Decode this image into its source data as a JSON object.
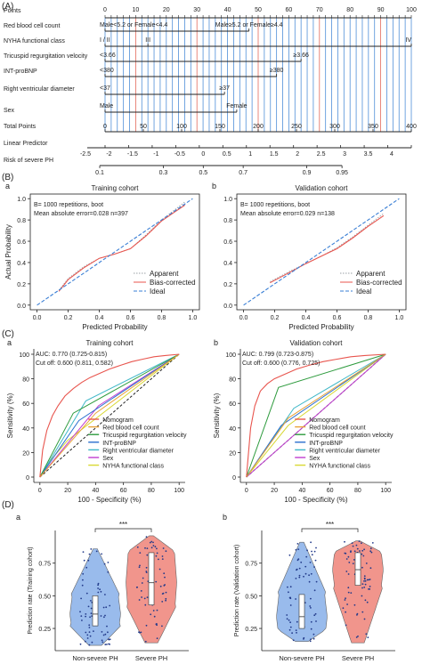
{
  "panel_labels": {
    "A": "(A)",
    "B": "(B)",
    "C": "(C)",
    "D": "(D)"
  },
  "sub_labels": {
    "a": "a",
    "b": "b"
  },
  "chart_data": [
    {
      "type": "nomogram",
      "panel": "(A)",
      "row_labels": [
        "Points",
        "Red blood cell count",
        "NYHA functional class",
        "Tricuspid regurgitation velocity",
        "INT-proBNP",
        "Right ventricular diameter",
        "Sex",
        "Total Points",
        "Linear Predictor",
        "Risk of severe PH"
      ],
      "points_ticks": [
        "0",
        "10",
        "20",
        "30",
        "40",
        "50",
        "60",
        "70",
        "80",
        "90",
        "100"
      ],
      "variables": [
        {
          "name": "Red blood cell count",
          "from": 0,
          "to": 47,
          "labels": [
            {
              "text": "Male<5.2 or Female<4.4",
              "at": 0
            },
            {
              "text": "Male≥5.2 or Female≥4.4",
              "at": 47
            }
          ]
        },
        {
          "name": "NYHA functional class",
          "from": 0,
          "to": 100,
          "labels": [
            {
              "text": "I / II",
              "at": 0
            },
            {
              "text": "III",
              "at": 14
            },
            {
              "text": "IV",
              "at": 100
            }
          ]
        },
        {
          "name": "Tricuspid regurgitation velocity",
          "from": 0,
          "to": 64,
          "labels": [
            {
              "text": "<3.66",
              "at": 0
            },
            {
              "text": "≥3.66",
              "at": 64
            }
          ]
        },
        {
          "name": "INT-proBNP",
          "from": 0,
          "to": 56,
          "labels": [
            {
              "text": "<380",
              "at": 0
            },
            {
              "text": "≥380",
              "at": 56
            }
          ]
        },
        {
          "name": "Right ventricular diameter",
          "from": 0,
          "to": 39,
          "labels": [
            {
              "text": "<37",
              "at": 0
            },
            {
              "text": "≥37",
              "at": 39
            }
          ]
        },
        {
          "name": "Sex",
          "from": 0,
          "to": 43,
          "labels": [
            {
              "text": "Male",
              "at": 0
            },
            {
              "text": "Female",
              "at": 43
            }
          ]
        }
      ],
      "total_points_ticks": [
        "0",
        "50",
        "100",
        "150",
        "200",
        "250",
        "300",
        "350",
        "400"
      ],
      "linear_predictor_ticks": [
        "-2.5",
        "-2",
        "-1.5",
        "-1",
        "-0.5",
        "0",
        "0.5",
        "1",
        "1.5",
        "2",
        "2.5",
        "3",
        "3.5",
        "4"
      ],
      "linear_predictor_values": [
        -2.5,
        -2,
        -1.5,
        -1,
        -0.5,
        0,
        0.5,
        1,
        1.5,
        2,
        2.5,
        3,
        3.5,
        4
      ],
      "risk_ticks": [
        "0.1",
        "0.3",
        "0.5",
        "0.7",
        "0.9",
        "0.95"
      ],
      "risk_values": [
        0.1,
        0.3,
        0.5,
        0.7,
        0.9,
        0.95
      ]
    },
    {
      "type": "line",
      "panel": "(B) a",
      "title": "Training cohort",
      "xlabel": "Predicted Probability",
      "ylabel": "Actual Probability",
      "xlim": [
        0,
        1
      ],
      "ylim": [
        0,
        1
      ],
      "xticks": [
        "0.0",
        "0.2",
        "0.4",
        "0.6",
        "0.8",
        "1.0"
      ],
      "yticks": [
        "0.0",
        "0.2",
        "0.4",
        "0.6",
        "0.8",
        "1.0"
      ],
      "annotations": [
        "B= 1000 repetitions, boot",
        "Mean absolute error=0.028 n=397"
      ],
      "legend": [
        "Apparent",
        "Bias-corrected",
        "Ideal"
      ],
      "legend_colors": [
        "#2ca02c",
        "#e8554e",
        "#3a7fd5"
      ],
      "series": [
        {
          "name": "Apparent",
          "x": [
            0.14,
            0.2,
            0.3,
            0.4,
            0.5,
            0.6,
            0.7,
            0.8,
            0.88,
            0.95
          ],
          "y": [
            0.14,
            0.25,
            0.36,
            0.44,
            0.48,
            0.53,
            0.66,
            0.8,
            0.89,
            0.97
          ]
        },
        {
          "name": "Bias-corrected",
          "x": [
            0.14,
            0.2,
            0.3,
            0.4,
            0.5,
            0.6,
            0.7,
            0.8,
            0.88,
            0.95
          ],
          "y": [
            0.13,
            0.24,
            0.35,
            0.44,
            0.48,
            0.53,
            0.65,
            0.79,
            0.87,
            0.94
          ]
        },
        {
          "name": "Ideal",
          "x": [
            0,
            1
          ],
          "y": [
            0,
            1
          ]
        }
      ]
    },
    {
      "type": "line",
      "panel": "(B) b",
      "title": "Validation cohort",
      "xlabel": "Predicted Probability",
      "ylabel": "",
      "xlim": [
        0,
        1
      ],
      "ylim": [
        0,
        1
      ],
      "xticks": [
        "0.0",
        "0.2",
        "0.4",
        "0.6",
        "0.8",
        "1.0"
      ],
      "yticks": [
        "0.0",
        "0.2",
        "0.4",
        "0.6",
        "0.8",
        "1.0"
      ],
      "annotations": [
        "B= 1000 repetitions, boot",
        "Mean absolute error=0.029 n=138"
      ],
      "legend": [
        "Apparent",
        "Bias-corrected",
        "Ideal"
      ],
      "legend_colors": [
        "#2ca02c",
        "#e8554e",
        "#3a7fd5"
      ],
      "series": [
        {
          "name": "Apparent",
          "x": [
            0.17,
            0.3,
            0.4,
            0.5,
            0.6,
            0.7,
            0.8,
            0.9
          ],
          "y": [
            0.22,
            0.32,
            0.39,
            0.46,
            0.54,
            0.64,
            0.75,
            0.86
          ]
        },
        {
          "name": "Bias-corrected",
          "x": [
            0.17,
            0.3,
            0.4,
            0.5,
            0.6,
            0.7,
            0.8,
            0.9
          ],
          "y": [
            0.21,
            0.31,
            0.39,
            0.46,
            0.53,
            0.63,
            0.74,
            0.84
          ]
        },
        {
          "name": "Ideal",
          "x": [
            0,
            1
          ],
          "y": [
            0,
            1
          ]
        }
      ]
    },
    {
      "type": "line",
      "panel": "(C) a",
      "title": "Training cohort",
      "xlabel": "100 - Specificity (%)",
      "ylabel": "Sensitivity (%)",
      "xlim": [
        0,
        100
      ],
      "ylim": [
        0,
        100
      ],
      "xticks": [
        "0",
        "20",
        "40",
        "60",
        "80",
        "100"
      ],
      "yticks": [
        "0",
        "20",
        "40",
        "60",
        "80",
        "100"
      ],
      "annotations": [
        "AUC: 0.770 (0.725-0.815)",
        "Cut off: 0.600 (0.811, 0.582)"
      ],
      "legend": [
        "Nomogram",
        "Red blood cell count",
        "Tricuspid regurgitation velocity",
        "INT-proBNP",
        "Right ventricular diameter",
        "Sex",
        "NYHA functional class"
      ],
      "series": [
        {
          "name": "Nomogram",
          "color": "#e8554e",
          "x": [
            0,
            2,
            5,
            9,
            13,
            18,
            24,
            30,
            36,
            42,
            50,
            58,
            66,
            74,
            82,
            90,
            100
          ],
          "y": [
            0,
            22,
            38,
            50,
            58,
            66,
            72,
            77,
            81,
            84,
            88,
            91,
            94,
            96,
            98,
            99,
            100
          ]
        },
        {
          "name": "Red blood cell count",
          "color": "#e8a33a",
          "x": [
            0,
            40,
            100
          ],
          "y": [
            0,
            52,
            100
          ]
        },
        {
          "name": "Tricuspid regurgitation velocity",
          "color": "#2e9b3e",
          "x": [
            0,
            24,
            100
          ],
          "y": [
            0,
            52,
            100
          ]
        },
        {
          "name": "INT-proBNP",
          "color": "#2a6fcf",
          "x": [
            0,
            28,
            100
          ],
          "y": [
            0,
            46,
            100
          ]
        },
        {
          "name": "Right ventricular diameter",
          "color": "#3fb7c7",
          "x": [
            0,
            33,
            100
          ],
          "y": [
            0,
            62,
            100
          ]
        },
        {
          "name": "Sex",
          "color": "#c03fd0",
          "x": [
            0,
            42,
            100
          ],
          "y": [
            0,
            58,
            100
          ]
        },
        {
          "name": "NYHA functional class",
          "color": "#d8d834",
          "x": [
            0,
            8,
            20,
            100
          ],
          "y": [
            0,
            14,
            30,
            100
          ]
        },
        {
          "name": "Reference",
          "color": "#222222",
          "x": [
            0,
            100
          ],
          "y": [
            0,
            100
          ]
        }
      ]
    },
    {
      "type": "line",
      "panel": "(C) b",
      "title": "Validation cohort",
      "xlabel": "100 - Specificity (%)",
      "ylabel": "Sensitivity (%)",
      "xlim": [
        0,
        100
      ],
      "ylim": [
        0,
        100
      ],
      "xticks": [
        "0",
        "20",
        "40",
        "60",
        "80",
        "100"
      ],
      "yticks": [
        "0",
        "20",
        "40",
        "60",
        "80",
        "100"
      ],
      "annotations": [
        "AUC: 0.799 (0.723-0.875)",
        "Cut off: 0.600 (0.776, 0.725)"
      ],
      "legend": [
        "Nomogram",
        "Red blood cell count",
        "Tricuspid regurgitation velocity",
        "INT-proBNP",
        "Right ventricular diameter",
        "Sex",
        "NYHA functional class"
      ],
      "series": [
        {
          "name": "Nomogram",
          "color": "#e8554e",
          "x": [
            0,
            3,
            6,
            10,
            15,
            20,
            28,
            36,
            45,
            55,
            65,
            75,
            85,
            100
          ],
          "y": [
            0,
            40,
            58,
            70,
            76,
            80,
            84,
            88,
            91,
            94,
            96,
            98,
            99,
            100
          ]
        },
        {
          "name": "Red blood cell count",
          "color": "#e8a33a",
          "x": [
            0,
            30,
            100
          ],
          "y": [
            0,
            48,
            100
          ]
        },
        {
          "name": "Tricuspid regurgitation velocity",
          "color": "#2e9b3e",
          "x": [
            0,
            23,
            100
          ],
          "y": [
            0,
            73,
            100
          ]
        },
        {
          "name": "INT-proBNP",
          "color": "#2a6fcf",
          "x": [
            0,
            25,
            100
          ],
          "y": [
            0,
            42,
            100
          ]
        },
        {
          "name": "Right ventricular diameter",
          "color": "#3fb7c7",
          "x": [
            0,
            34,
            100
          ],
          "y": [
            0,
            56,
            100
          ]
        },
        {
          "name": "Sex",
          "color": "#c03fd0",
          "x": [
            0,
            100
          ],
          "y": [
            0,
            100
          ]
        },
        {
          "name": "NYHA functional class",
          "color": "#d8d834",
          "x": [
            0,
            30,
            100
          ],
          "y": [
            0,
            42,
            100
          ]
        },
        {
          "name": "Reference",
          "color": "#222222",
          "x": [
            0,
            100
          ],
          "y": [
            0,
            100
          ]
        }
      ]
    },
    {
      "type": "violin",
      "panel": "(D) a",
      "ylabel": "Prediction rate (Training cohort)",
      "categories": [
        "Non-severe PH",
        "Severe PH"
      ],
      "yticks": [
        "0.25",
        "0.50",
        "0.75"
      ],
      "ylim": [
        0.08,
        1.0
      ],
      "significance": "***",
      "colors": [
        "#8fb4ea",
        "#f08a80"
      ],
      "groups": [
        {
          "name": "Non-severe PH",
          "min": 0.12,
          "q1": 0.27,
          "median": 0.36,
          "q3": 0.5,
          "max": 0.86
        },
        {
          "name": "Severe PH",
          "min": 0.14,
          "q1": 0.43,
          "median": 0.6,
          "q3": 0.83,
          "max": 0.96
        }
      ]
    },
    {
      "type": "violin",
      "panel": "(D) b",
      "ylabel": "Prediction rate (Validation cohort)",
      "categories": [
        "Non-severe PH",
        "Severe PH"
      ],
      "yticks": [
        "0.25",
        "0.50",
        "0.75"
      ],
      "ylim": [
        0.08,
        1.0
      ],
      "significance": "***",
      "colors": [
        "#8fb4ea",
        "#f08a80"
      ],
      "groups": [
        {
          "name": "Non-severe PH",
          "min": 0.15,
          "q1": 0.25,
          "median": 0.34,
          "q3": 0.51,
          "max": 0.91
        },
        {
          "name": "Severe PH",
          "min": 0.14,
          "q1": 0.58,
          "median": 0.7,
          "q3": 0.83,
          "max": 0.92
        }
      ]
    }
  ]
}
